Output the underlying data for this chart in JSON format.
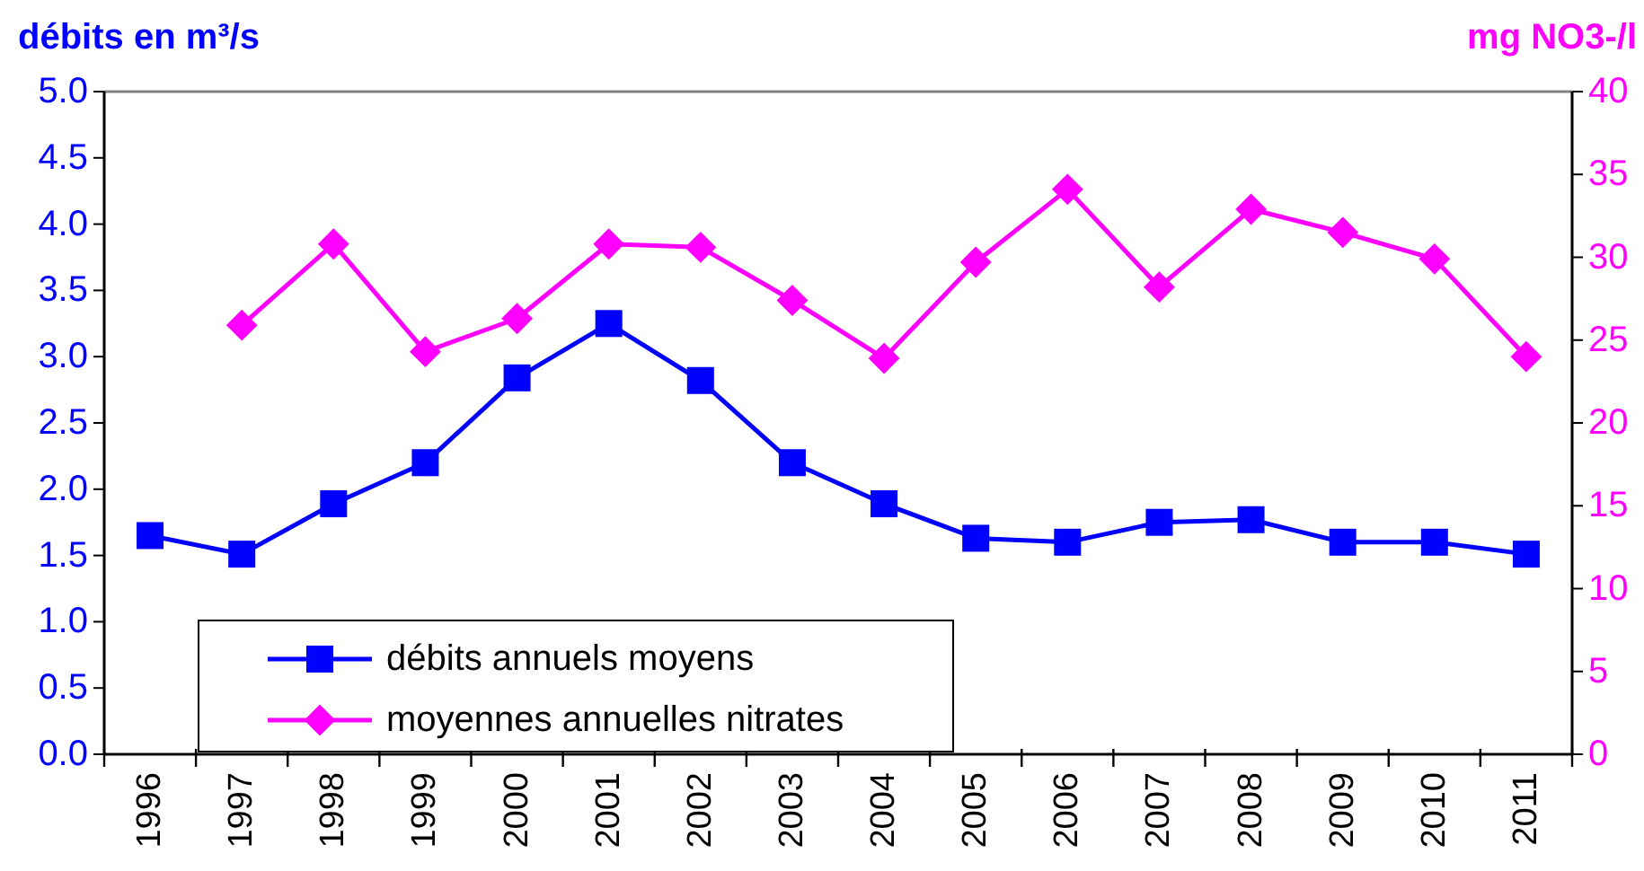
{
  "chart_data": {
    "type": "line",
    "ylabel": "débits en m³/s",
    "y2label": "mg NO3-/l",
    "categories": [
      "1996",
      "1997",
      "1998",
      "1999",
      "2000",
      "2001",
      "2002",
      "2003",
      "2004",
      "2005",
      "2006",
      "2007",
      "2008",
      "2009",
      "2010",
      "2011"
    ],
    "series": [
      {
        "name": "débits annuels moyens",
        "color": "#0000ff",
        "marker": "square",
        "values": [
          1.65,
          1.51,
          1.89,
          2.2,
          2.84,
          3.25,
          2.82,
          2.2,
          1.89,
          1.63,
          1.6,
          1.75,
          1.77,
          1.6,
          1.6,
          1.51
        ]
      },
      {
        "name": "moyennes annuelles nitrates",
        "color": "#ff00ff",
        "marker": "diamond",
        "axis": "y2",
        "values": [
          null,
          25.9,
          30.8,
          24.3,
          26.3,
          30.8,
          30.6,
          27.4,
          23.9,
          29.7,
          34.1,
          28.2,
          32.9,
          31.5,
          29.9,
          24.0
        ]
      }
    ],
    "ylim": [
      0,
      5
    ],
    "yticks": [
      {
        "value": 0,
        "label": "0.0"
      },
      {
        "value": 0.5,
        "label": "0.5"
      },
      {
        "value": 1,
        "label": "1.0"
      },
      {
        "value": 1.5,
        "label": "1.5"
      },
      {
        "value": 2,
        "label": "2.0"
      },
      {
        "value": 2.5,
        "label": "2.5"
      },
      {
        "value": 3,
        "label": "3.0"
      },
      {
        "value": 3.5,
        "label": "3.5"
      },
      {
        "value": 4,
        "label": "4.0"
      },
      {
        "value": 4.5,
        "label": "4.5"
      },
      {
        "value": 5,
        "label": "5.0"
      }
    ],
    "y2lim": [
      0,
      40
    ],
    "y2ticks": [
      0,
      5,
      10,
      15,
      20,
      25,
      30,
      35,
      40
    ],
    "legend": "bottom left",
    "line_style": "solid"
  }
}
